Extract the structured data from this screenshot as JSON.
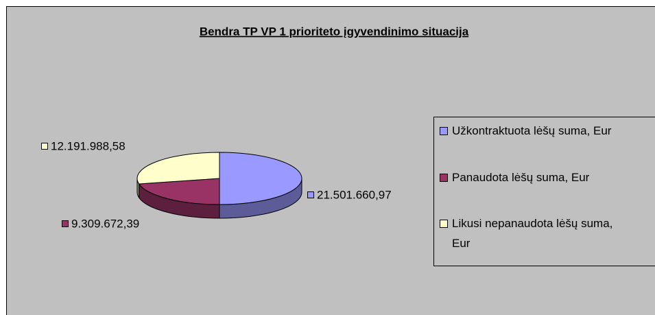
{
  "chart_data": {
    "type": "pie",
    "title": "Bendra TP VP 1 prioriteto įgyvendinimo situacija",
    "categories": [
      "Užkontraktuota lėšų suma, Eur",
      "Panaudota lėšų suma, Eur",
      "Likusi nepanaudota lėšų suma, Eur"
    ],
    "values": [
      21501660.97,
      9309672.39,
      12191988.58
    ],
    "value_labels": [
      "21.501.660,97",
      "9.309.672,39",
      "12.191.988,58"
    ],
    "colors": [
      "#9999ff",
      "#993366",
      "#ffffcc"
    ],
    "legend": "right"
  }
}
